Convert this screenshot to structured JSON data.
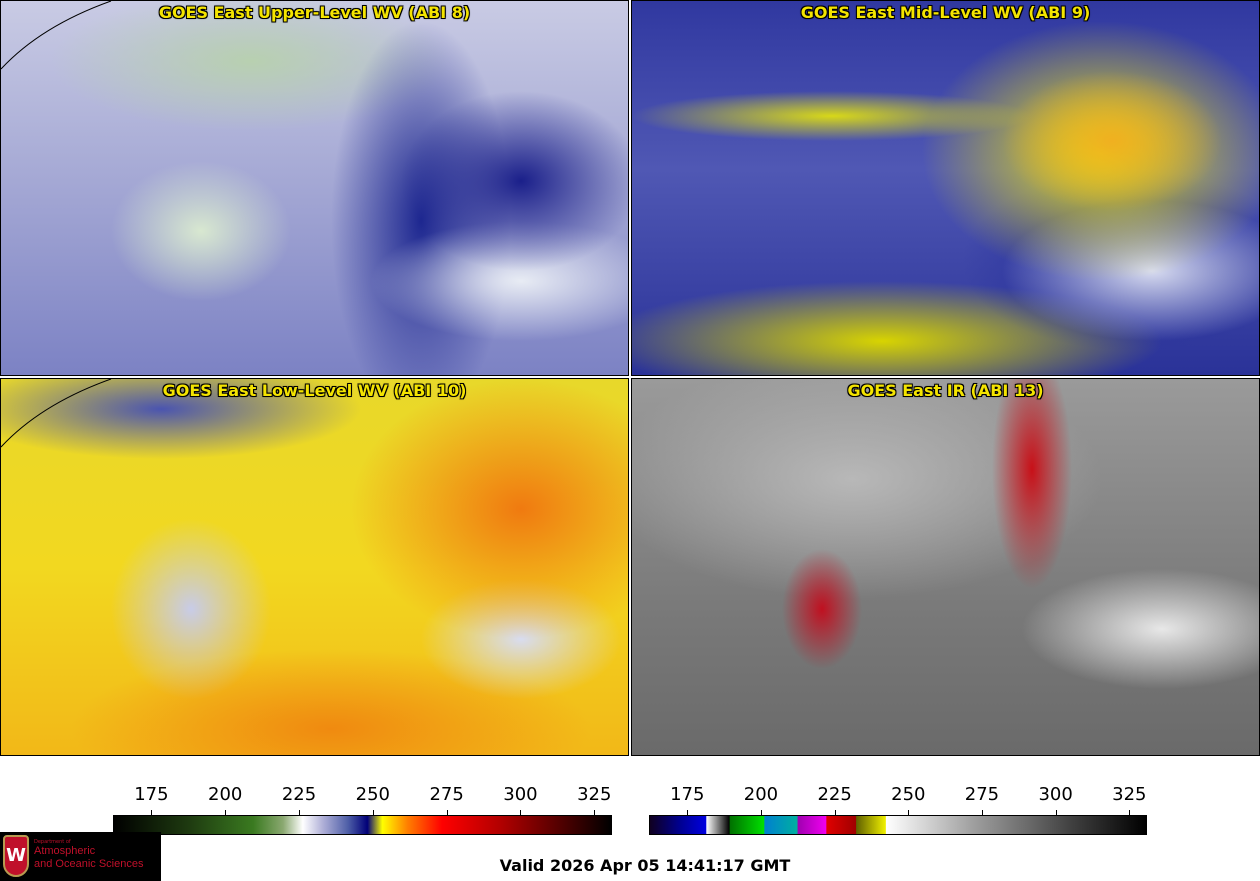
{
  "panels": [
    {
      "title": "GOES East Upper-Level WV (ABI 8)"
    },
    {
      "title": "GOES East Mid-Level WV (ABI 9)"
    },
    {
      "title": "GOES East Low-Level WV (ABI 10)"
    },
    {
      "title": "GOES East IR (ABI 13)"
    }
  ],
  "colorbars": [
    {
      "name": "water-vapor",
      "range": [
        162,
        331
      ],
      "ticks": [
        "175",
        "200",
        "225",
        "250",
        "275",
        "300",
        "325"
      ]
    },
    {
      "name": "infrared",
      "range": [
        162,
        331
      ],
      "ticks": [
        "175",
        "200",
        "225",
        "250",
        "275",
        "300",
        "325"
      ]
    }
  ],
  "logo": {
    "small": "Department of",
    "line1": "Atmospheric",
    "line2": "and Oceanic Sciences",
    "shield_letter": "W"
  },
  "valid_time": "Valid 2026 Apr 05 14:41:17 GMT"
}
